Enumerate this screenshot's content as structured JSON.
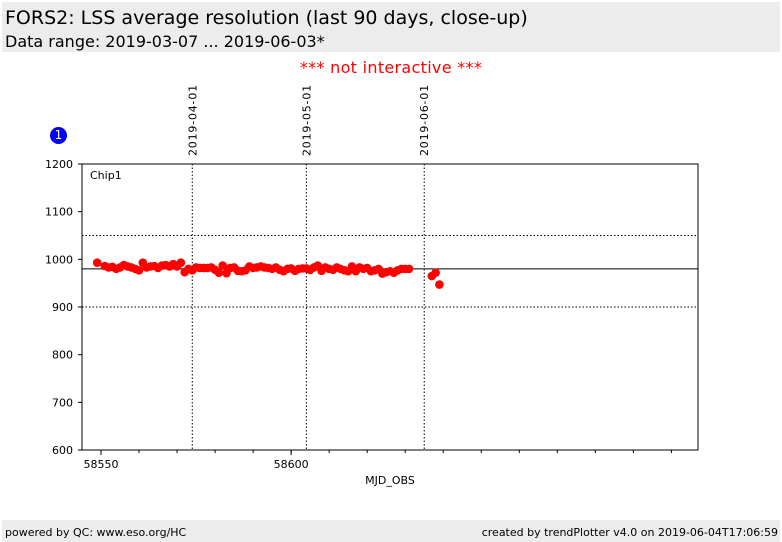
{
  "header": {
    "title": "FORS2: LSS average resolution (last 90 days, close-up)",
    "subtitle": "Data range: 2019-03-07 ... 2019-06-03*"
  },
  "notice": "*** not interactive ***",
  "badge": "1",
  "footer": {
    "left": "powered by QC: www.eso.org/HC",
    "right": "created by trendPlotter v4.0 on 2019-06-04T17:06:59"
  },
  "chart_data": {
    "type": "scatter",
    "panel_label": "Chip1",
    "xlabel": "MJD_OBS",
    "ylabel": "",
    "xlim": [
      58545,
      58707
    ],
    "ylim": [
      600,
      1200
    ],
    "x_ticks": [
      58550,
      58600
    ],
    "y_ticks": [
      600,
      700,
      800,
      900,
      1000,
      1100,
      1200
    ],
    "x_minor_step": 10,
    "grid": false,
    "date_markers": [
      {
        "x": 58574,
        "label": "2019-04-01"
      },
      {
        "x": 58604,
        "label": "2019-05-01"
      },
      {
        "x": 58635,
        "label": "2019-06-01"
      }
    ],
    "reference_lines": {
      "average": 980,
      "limits": [
        900,
        1050
      ]
    },
    "point_color": "#ff0000",
    "series": [
      {
        "x": [
          58549,
          58551,
          58552,
          58553,
          58554,
          58555,
          58556,
          58557,
          58558,
          58559,
          58560,
          58561,
          58562,
          58563,
          58564,
          58565,
          58566,
          58567,
          58568,
          58569,
          58570,
          58571,
          58572,
          58573,
          58574,
          58575,
          58576,
          58577,
          58578,
          58579,
          58580,
          58581,
          58582,
          58583,
          58584,
          58585,
          58586,
          58587,
          58588,
          58589,
          58590,
          58591,
          58592,
          58593,
          58594,
          58595,
          58596,
          58597,
          58598,
          58599,
          58600,
          58601,
          58602,
          58603,
          58604,
          58605,
          58606,
          58607,
          58608,
          58609,
          58610,
          58611,
          58612,
          58613,
          58614,
          58615,
          58616,
          58617,
          58618,
          58619,
          58620,
          58621,
          58622,
          58623,
          58624,
          58625,
          58626,
          58627,
          58628,
          58629,
          58630,
          58631,
          58637,
          58638,
          58639
        ],
        "y": [
          993,
          986,
          983,
          984,
          980,
          983,
          988,
          985,
          983,
          980,
          977,
          993,
          983,
          985,
          986,
          982,
          987,
          988,
          985,
          990,
          985,
          993,
          973,
          980,
          977,
          983,
          982,
          982,
          982,
          983,
          978,
          972,
          987,
          971,
          982,
          983,
          976,
          975,
          977,
          985,
          982,
          983,
          985,
          983,
          982,
          980,
          983,
          978,
          975,
          980,
          981,
          976,
          980,
          981,
          981,
          978,
          983,
          987,
          976,
          983,
          980,
          978,
          983,
          980,
          977,
          975,
          985,
          975,
          983,
          980,
          982,
          975,
          977,
          980,
          970,
          973,
          975,
          972,
          977,
          980,
          980,
          980,
          965,
          972,
          947
        ]
      }
    ]
  }
}
